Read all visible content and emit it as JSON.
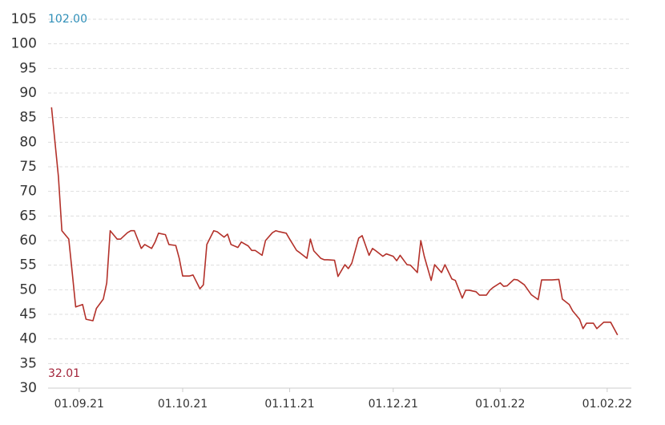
{
  "chart_data": {
    "type": "line",
    "annotations": [
      {
        "text": "102.00",
        "color": "#2f8fb8"
      },
      {
        "text": "32.01",
        "color": "#a3243a"
      }
    ],
    "x": [
      "24.08.21",
      "26.08.21",
      "27.08.21",
      "29.08.21",
      "30.08.21",
      "31.08.21",
      "02.09.21",
      "03.09.21",
      "05.09.21",
      "06.09.21",
      "08.09.21",
      "09.09.21",
      "10.09.21",
      "12.09.21",
      "13.09.21",
      "15.09.21",
      "16.09.21",
      "17.09.21",
      "19.09.21",
      "20.09.21",
      "22.09.21",
      "23.09.21",
      "24.09.21",
      "26.09.21",
      "27.09.21",
      "29.09.21",
      "30.09.21",
      "01.10.21",
      "03.10.21",
      "04.10.21",
      "06.10.21",
      "07.10.21",
      "08.10.21",
      "10.10.21",
      "11.10.21",
      "13.10.21",
      "14.10.21",
      "15.10.21",
      "17.10.21",
      "18.10.21",
      "20.10.21",
      "21.10.21",
      "22.10.21",
      "24.10.21",
      "25.10.21",
      "27.10.21",
      "28.10.21",
      "29.10.21",
      "31.10.21",
      "01.11.21",
      "03.11.21",
      "04.11.21",
      "06.11.21",
      "07.11.21",
      "08.11.21",
      "10.11.21",
      "11.11.21",
      "12.11.21",
      "14.11.21",
      "15.11.21",
      "17.11.21",
      "18.11.21",
      "19.11.21",
      "21.11.21",
      "22.11.21",
      "24.11.21",
      "25.11.21",
      "26.11.21",
      "28.11.21",
      "29.11.21",
      "01.12.21",
      "02.12.21",
      "03.12.21",
      "05.12.21",
      "06.12.21",
      "08.12.21",
      "09.12.21",
      "10.12.21",
      "12.12.21",
      "13.12.21",
      "15.12.21",
      "16.12.21",
      "18.12.21",
      "19.12.21",
      "21.12.21",
      "22.12.21",
      "23.12.21",
      "25.12.21",
      "26.12.21",
      "28.12.21",
      "29.12.21",
      "30.12.21",
      "01.01.22",
      "02.01.22",
      "03.01.22",
      "05.01.22",
      "06.01.22",
      "08.01.22",
      "09.01.22",
      "10.01.22",
      "12.01.22",
      "13.01.22",
      "15.01.22",
      "16.01.22",
      "18.01.22",
      "19.01.22",
      "21.01.22",
      "22.01.22",
      "24.01.22",
      "25.01.22",
      "26.01.22",
      "28.01.22",
      "29.01.22",
      "31.01.22",
      "01.02.22",
      "02.02.22",
      "04.02.22"
    ],
    "series": [
      {
        "color": "#b3312a",
        "values": [
          87.1,
          73.0,
          62.0,
          60.3,
          53.5,
          46.5,
          47.0,
          44.0,
          43.7,
          46.2,
          48.1,
          51.4,
          62.0,
          60.3,
          60.3,
          61.6,
          62.0,
          62.0,
          58.4,
          59.2,
          58.4,
          59.7,
          61.5,
          61.2,
          59.2,
          59.0,
          56.4,
          52.8,
          52.8,
          53.0,
          50.2,
          51.0,
          59.2,
          62.0,
          61.8,
          60.7,
          61.3,
          59.2,
          58.6,
          59.7,
          58.9,
          58.0,
          58.0,
          57.0,
          60.0,
          61.6,
          62.0,
          61.8,
          61.5,
          60.3,
          58.0,
          57.5,
          56.4,
          60.3,
          57.9,
          56.4,
          56.1,
          56.1,
          56.0,
          52.7,
          55.1,
          54.3,
          55.4,
          60.5,
          61.0,
          57.0,
          58.4,
          57.9,
          56.8,
          57.3,
          56.8,
          55.9,
          57.0,
          55.1,
          55.0,
          53.5,
          60.0,
          56.8,
          51.9,
          55.1,
          53.5,
          55.1,
          52.2,
          51.9,
          48.3,
          49.9,
          49.9,
          49.6,
          48.9,
          48.9,
          49.9,
          50.5,
          51.4,
          50.7,
          50.8,
          52.1,
          52.0,
          51.0,
          50.0,
          49.0,
          48.0,
          52.0,
          52.0,
          52.0,
          52.1,
          48.1,
          47.0,
          45.7,
          44.0,
          42.1,
          43.2,
          43.2,
          42.1,
          43.4,
          43.4,
          43.4,
          40.8
        ]
      }
    ],
    "xlim": [
      "23.08.21",
      "08.02.22"
    ],
    "xticks": [
      "01.09.21",
      "01.10.21",
      "01.11.21",
      "01.12.21",
      "01.01.22",
      "01.02.22"
    ],
    "ylim": [
      30,
      105
    ],
    "yticks": [
      30,
      35,
      40,
      45,
      50,
      55,
      60,
      65,
      70,
      75,
      80,
      85,
      90,
      95,
      100,
      105
    ],
    "grid": true
  }
}
